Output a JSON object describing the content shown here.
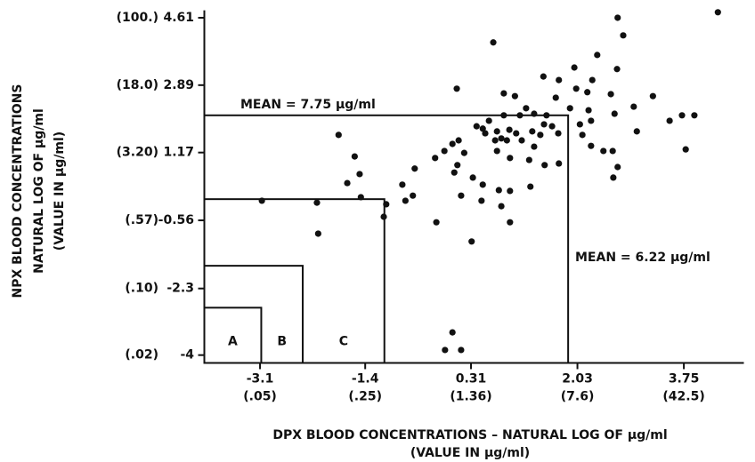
{
  "chart_data": {
    "type": "scatter",
    "xlabel": [
      "DPX BLOOD CONCENTRATIONS – NATURAL LOG OF μg/ml",
      "(VALUE IN μg/ml)"
    ],
    "ylabel": [
      "NPX BLOOD CONCENTRATIONS",
      "NATURAL LOG OF μg/ml",
      "(VALUE IN μg/ml)"
    ],
    "xlim": [
      -4.0,
      4.72
    ],
    "ylim": [
      -4.2,
      4.8
    ],
    "xticks": [
      -3.1,
      -1.4,
      0.31,
      2.03,
      3.75
    ],
    "xtick_sublabels": [
      "(.05)",
      "(.25)",
      "(1.36)",
      "(7.6)",
      "(42.5)"
    ],
    "yticks": [
      4.61,
      2.89,
      1.17,
      -0.56,
      -2.3,
      -4.0
    ],
    "ytick_sublabels": [
      "(100.)",
      "(18.0)",
      "(3.20)",
      "(.57)",
      "(.10)",
      "(.02)"
    ],
    "color": "#111111",
    "regions": [
      {
        "x": -3.08,
        "y": -2.79,
        "label": "A"
      },
      {
        "x": -2.41,
        "y": -1.72,
        "label": "B"
      },
      {
        "x": -1.09,
        "y": -0.02,
        "label": "C"
      },
      {
        "x": 1.88,
        "y": 2.12
      }
    ],
    "annotations": [
      "MEAN = 7.75 μg/ml",
      "MEAN = 6.22 μg/ml"
    ],
    "x": [
      4.3,
      2.68,
      2.77,
      0.67,
      2.35,
      2.67,
      1.98,
      1.48,
      0.08,
      1.02,
      0.84,
      1.68,
      2.01,
      2.57,
      3.25,
      2.27,
      2.19,
      1.73,
      2.94,
      1.91,
      1.33,
      1.2,
      1.53,
      1.1,
      0.84,
      0.6,
      0.5,
      0.4,
      0.73,
      0.93,
      1.04,
      1.49,
      1.62,
      1.72,
      1.43,
      1.3,
      2.21,
      2.25,
      2.07,
      2.11,
      2.63,
      2.99,
      3.52,
      3.72,
      3.92,
      3.78,
      1.33,
      1.13,
      0.89,
      0.8,
      0.7,
      0.54,
      0.11,
      0.01,
      -0.12,
      -0.27,
      0.2,
      0.73,
      0.94,
      1.25,
      1.5,
      1.73,
      2.25,
      2.45,
      2.6,
      2.61,
      2.68,
      -1.83,
      -1.57,
      -1.49,
      -1.69,
      -0.6,
      -0.8,
      -0.63,
      -0.75,
      0.09,
      0.04,
      0.34,
      0.5,
      0.76,
      0.94,
      1.27,
      0.15,
      0.48,
      0.8,
      0.94,
      -0.25,
      0.32,
      -1.06,
      -1.1,
      -3.07,
      -2.18,
      -2.16,
      -1.47,
      0.01,
      -0.11,
      0.15
    ],
    "values": [
      4.75,
      4.61,
      4.16,
      3.98,
      3.66,
      3.3,
      3.34,
      3.11,
      2.8,
      2.61,
      2.68,
      2.57,
      2.8,
      2.66,
      2.61,
      3.02,
      2.71,
      3.02,
      2.34,
      2.3,
      2.16,
      2.3,
      2.12,
      2.12,
      2.12,
      1.98,
      1.78,
      1.84,
      1.71,
      1.75,
      1.66,
      1.89,
      1.84,
      1.66,
      1.62,
      1.71,
      2.25,
      1.98,
      1.89,
      1.62,
      2.16,
      1.71,
      1.98,
      2.12,
      2.12,
      1.25,
      1.32,
      1.48,
      1.48,
      1.53,
      1.48,
      1.66,
      1.48,
      1.39,
      1.21,
      1.03,
      1.16,
      1.21,
      1.03,
      0.98,
      0.85,
      0.89,
      1.34,
      1.21,
      1.21,
      0.53,
      0.8,
      1.62,
      1.07,
      0.62,
      0.39,
      0.76,
      0.35,
      0.07,
      -0.06,
      0.85,
      0.66,
      0.53,
      0.35,
      0.21,
      0.19,
      0.3,
      0.07,
      -0.06,
      -0.2,
      -0.61,
      -0.61,
      -1.1,
      -0.15,
      -0.47,
      -0.06,
      -0.11,
      -0.9,
      0.03,
      -3.42,
      -3.87,
      -3.87
    ]
  }
}
